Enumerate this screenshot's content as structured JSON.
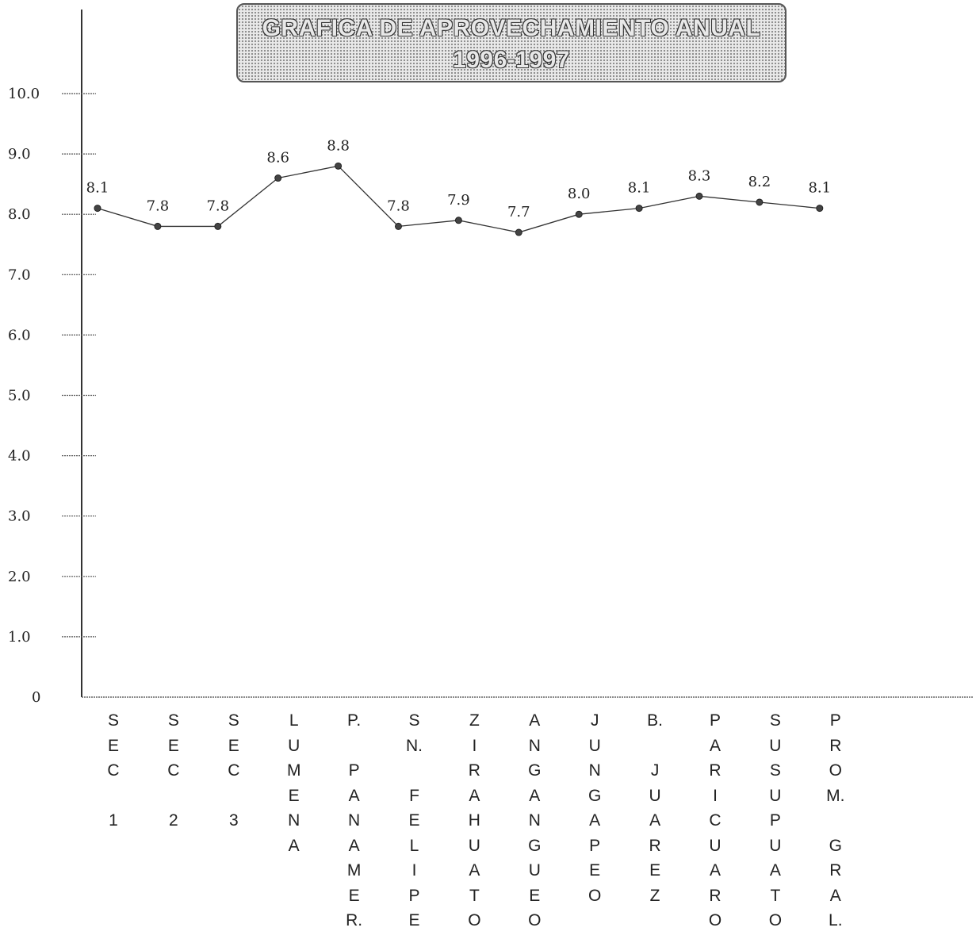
{
  "chart_data": {
    "type": "line",
    "title": "GRAFICA DE APROVECHAMIENTO ANUAL",
    "subtitle": "1996-1997",
    "xlabel": "",
    "ylabel": "",
    "ylim": [
      0,
      10.0
    ],
    "yticks": [
      "0",
      "1.0",
      "2.0",
      "3.0",
      "4.0",
      "5.0",
      "6.0",
      "7.0",
      "8.0",
      "9.0",
      "10.0"
    ],
    "categories": [
      "S\nE\nC\n\n1",
      "S\nE\nC\n\n2",
      "S\nE\nC\n\n3",
      "L\nU\nM\nE\nN\nA",
      "P.\n\nP\nA\nN\nA\nM\nE\nR.",
      "S\nN.\n\nF\nE\nL\nI\nP\nE",
      "Z\nI\nR\nA\nH\nU\nA\nT\nO",
      "A\nN\nG\nA\nN\nG\nU\nE\nO",
      "J\nU\nN\nG\nA\nP\nE\nO",
      "B.\n\nJ\nU\nA\nR\nE\nZ",
      "P\nA\nR\nI\nC\nU\nA\nR\nO",
      "S\nU\nS\nU\nP\nU\nA\nT\nO",
      "P\nR\nO\nM.\n\nG\nR\nA\nL."
    ],
    "series": [
      {
        "values": [
          8.1,
          7.8,
          7.8,
          8.6,
          8.8,
          7.8,
          7.9,
          7.7,
          8.0,
          8.1,
          8.3,
          8.2,
          8.1
        ],
        "value_labels": [
          "8.1",
          "7.8",
          "7.8",
          "8.6",
          "8.8",
          "7.8",
          "7.9",
          "7.7",
          "8.0",
          "8.1",
          "8.3",
          "8.2",
          "8.1"
        ]
      }
    ],
    "grid": false,
    "line_color": "#333333"
  }
}
